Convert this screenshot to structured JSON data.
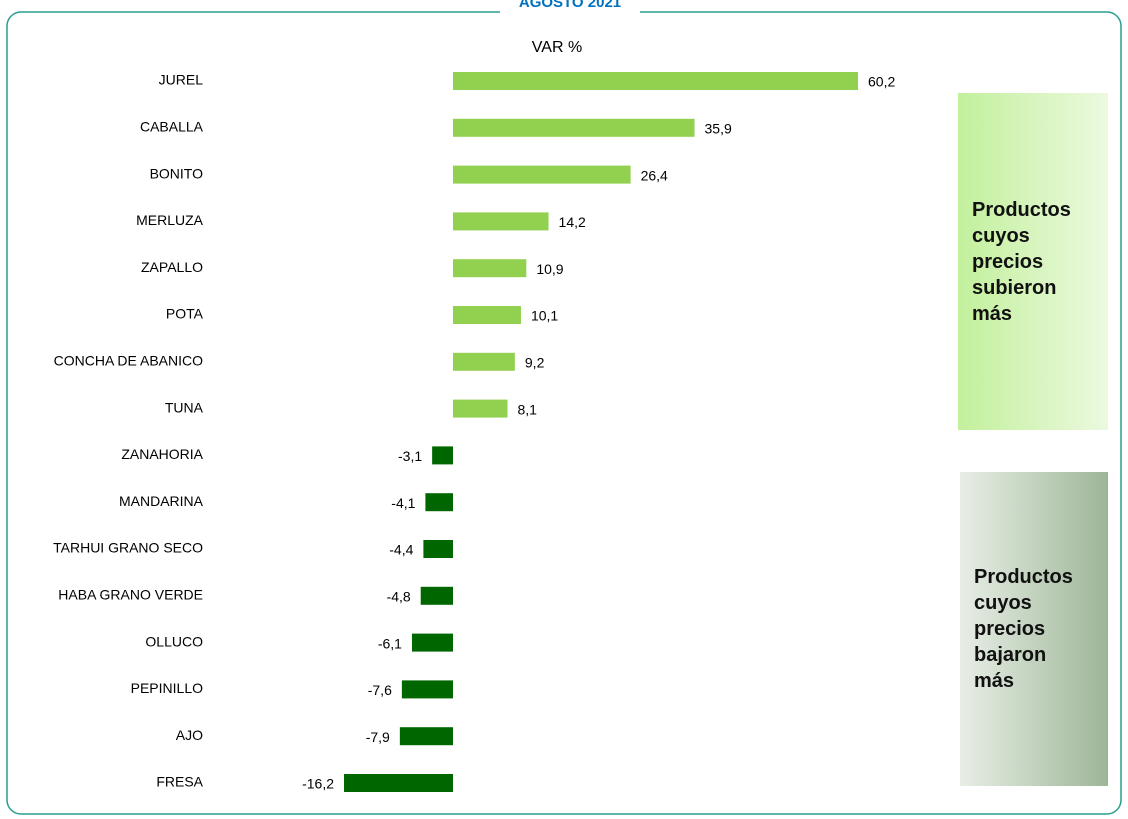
{
  "chart_data": {
    "type": "hbar",
    "title": "AGOSTO 2021",
    "value_title": "VAR %",
    "categories": [
      "JUREL",
      "CABALLA",
      "BONITO",
      "MERLUZA",
      "ZAPALLO",
      "POTA",
      "CONCHA DE ABANICO",
      "TUNA",
      "ZANAHORIA",
      "MANDARINA",
      "TARHUI GRANO SECO",
      "HABA GRANO VERDE",
      "OLLUCO",
      "PEPINILLO",
      "AJO",
      "FRESA"
    ],
    "values": [
      60.2,
      35.9,
      26.4,
      14.2,
      10.9,
      10.1,
      9.2,
      8.1,
      -3.1,
      -4.1,
      -4.4,
      -4.8,
      -6.1,
      -7.6,
      -7.9,
      -16.2
    ],
    "value_labels": [
      "60,2",
      "35,9",
      "26,4",
      "14,2",
      "10,9",
      "10,1",
      "9,2",
      "8,1",
      "-3,1",
      "-4,1",
      "-4,4",
      "-4,8",
      "-6,1",
      "-7,6",
      "-7,9",
      "-16,2"
    ],
    "color": "#92d050",
    "negative_color": "#006600",
    "annotations": [
      "Productos cuyos precios subieron más",
      "Productos cuyos precios bajaron más"
    ]
  }
}
